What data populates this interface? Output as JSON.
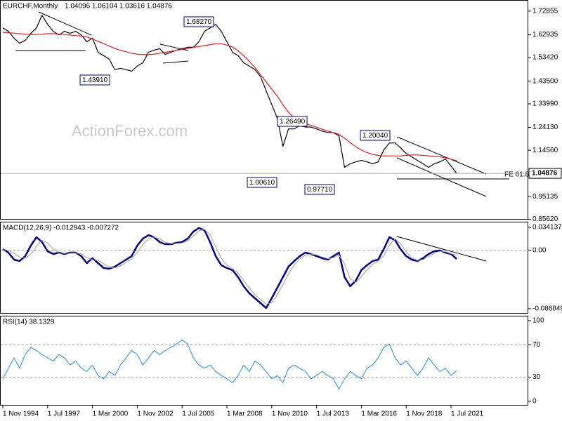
{
  "chart_data": [
    {
      "type": "line",
      "title": "EURCHF,Monthly",
      "subtitle": "1.04096 1.06104 1.03616 1.04876",
      "watermark": "ActionForex.com",
      "annotations": [
        "1.68270",
        "1.43910",
        "1.26490",
        "1.00610",
        "0.97710",
        "1.20040"
      ],
      "fe_label": "FE 61.8",
      "ylim": [
        0.855,
        1.775
      ],
      "yticks": [
        1.72855,
        1.62935,
        {
          "value": 1.5342,
          "label": "1.53420"
        },
        {
          "value": 1.435,
          "label": "1.43500"
        },
        {
          "value": 1.3399,
          "label": "1.33990"
        },
        {
          "value": 1.2413,
          "label": "1.24130"
        },
        {
          "value": 1.1456,
          "label": "1.14560"
        },
        0.95135,
        {
          "value": 0.8562,
          "label": "0.85620"
        }
      ],
      "series": [
        {
          "color": "#000000",
          "values": [
            1.658,
            1.644,
            1.615,
            1.594,
            1.606,
            1.635,
            1.658,
            1.711,
            1.673,
            1.644,
            1.629,
            1.644,
            1.635,
            1.644,
            1.629,
            1.6,
            1.615,
            1.556,
            1.542,
            1.527,
            1.483,
            1.489,
            1.483,
            1.477,
            1.498,
            1.512,
            1.556,
            1.565,
            1.571,
            1.547,
            1.556,
            1.565,
            1.571,
            1.577,
            1.577,
            1.6,
            1.644,
            1.658,
            1.673,
            1.644,
            1.6,
            1.556,
            1.542,
            1.512,
            1.498,
            1.483,
            1.454,
            1.395,
            1.337,
            1.279,
            1.162,
            1.235,
            1.235,
            1.249,
            1.243,
            1.243,
            1.235,
            1.226,
            1.22,
            1.22,
            1.206,
            1.074,
            1.089,
            1.097,
            1.103,
            1.097,
            1.089,
            1.097,
            1.147,
            1.176,
            1.176,
            1.156,
            1.132,
            1.118,
            1.103,
            1.089,
            1.074,
            1.089,
            1.097,
            1.109,
            1.08,
            1.04876
          ]
        },
        {
          "color": "#d42020",
          "values": [
            1.64,
            1.638,
            1.636,
            1.634,
            1.632,
            1.63,
            1.63,
            1.632,
            1.634,
            1.634,
            1.632,
            1.63,
            1.628,
            1.626,
            1.624,
            1.62,
            1.612,
            1.602,
            1.592,
            1.582,
            1.572,
            1.564,
            1.558,
            1.552,
            1.548,
            1.546,
            1.546,
            1.548,
            1.552,
            1.556,
            1.56,
            1.564,
            1.568,
            1.572,
            1.576,
            1.58,
            1.584,
            1.588,
            1.592,
            1.592,
            1.586,
            1.578,
            1.562,
            1.542,
            1.518,
            1.492,
            1.462,
            1.432,
            1.402,
            1.372,
            1.336,
            1.304,
            1.282,
            1.268,
            1.258,
            1.25,
            1.242,
            1.234,
            1.226,
            1.22,
            1.212,
            1.196,
            1.178,
            1.16,
            1.146,
            1.136,
            1.128,
            1.124,
            1.122,
            1.122,
            1.122,
            1.122,
            1.124,
            1.126,
            1.126,
            1.124,
            1.122,
            1.12,
            1.118,
            1.114,
            1.108,
            1.102
          ]
        }
      ]
    },
    {
      "type": "line",
      "title": "MACD(12,26,9) -0.012943 -0.007272",
      "ylim": [
        -0.0942,
        0.0425
      ],
      "yticks": [
        0.034137,
        {
          "value": 0,
          "label": "0.00"
        },
        -0.086849
      ],
      "levels": [
        0
      ],
      "series": [
        {
          "color": "#00007f",
          "width": 2.5,
          "values": [
            0.0018,
            -0.0034,
            -0.0139,
            -0.016,
            -0.0087,
            0.007,
            0.0195,
            0.0122,
            -0.0014,
            -0.0055,
            -0.0034,
            -0.0055,
            -0.0034,
            -0.0034,
            -0.0087,
            -0.0191,
            -0.0118,
            -0.0191,
            -0.0264,
            -0.0274,
            -0.0243,
            -0.0191,
            -0.0139,
            -0.0087,
            0.007,
            0.0174,
            0.0226,
            0.0195,
            0.0122,
            0.0091,
            0.0091,
            0.0112,
            0.0122,
            0.0174,
            0.0278,
            0.0331,
            0.0299,
            0.0122,
            -0.0087,
            -0.0222,
            -0.0264,
            -0.0295,
            -0.0399,
            -0.0535,
            -0.0639,
            -0.0712,
            -0.0785,
            -0.086,
            -0.0712,
            -0.0556,
            -0.0399,
            -0.0243,
            -0.016,
            -0.0087,
            -0.0034,
            -0.0055,
            -0.0087,
            -0.0118,
            -0.0139,
            -0.0087,
            -0.0034,
            -0.0399,
            -0.0535,
            -0.0452,
            -0.0295,
            -0.0222,
            -0.016,
            -0.0139,
            0.0018,
            0.0195,
            0.0153,
            0.0018,
            -0.0087,
            -0.0139,
            -0.016,
            -0.0118,
            -0.0055,
            -0.0014,
            -0.0003,
            -0.0034,
            -0.0055,
            -0.0129
          ]
        },
        {
          "color": "#a0a0a0",
          "width": 1,
          "values": [
            0.001,
            0.0,
            -0.004,
            -0.01,
            -0.012,
            -0.006,
            0.006,
            0.015,
            0.011,
            0.002,
            -0.004,
            -0.0045,
            -0.0045,
            -0.004,
            -0.005,
            -0.011,
            -0.014,
            -0.015,
            -0.02,
            -0.025,
            -0.026,
            -0.023,
            -0.018,
            -0.013,
            -0.003,
            0.009,
            0.017,
            0.02,
            0.017,
            0.012,
            0.01,
            0.01,
            0.011,
            0.014,
            0.021,
            0.029,
            0.031,
            0.023,
            0.005,
            -0.012,
            -0.022,
            -0.027,
            -0.034,
            -0.045,
            -0.056,
            -0.066,
            -0.073,
            -0.08,
            -0.078,
            -0.066,
            -0.051,
            -0.035,
            -0.022,
            -0.013,
            -0.007,
            -0.0055,
            -0.007,
            -0.01,
            -0.0125,
            -0.011,
            -0.007,
            -0.02,
            -0.042,
            -0.048,
            -0.039,
            -0.029,
            -0.021,
            -0.016,
            -0.008,
            0.008,
            0.017,
            0.01,
            -0.002,
            -0.011,
            -0.015,
            -0.014,
            -0.009,
            -0.004,
            -0.0015,
            -0.002,
            -0.005,
            -0.0073
          ]
        }
      ]
    },
    {
      "type": "line",
      "title": "RSI(14) 38.1329",
      "ylim": [
        -5.2,
        106
      ],
      "yticks": [
        100,
        70,
        30,
        0
      ],
      "levels": [
        70,
        30
      ],
      "categories": [
        "1 Nov 1994",
        null,
        null,
        null,
        null,
        null,
        null,
        null,
        "1 Jul 1997",
        null,
        null,
        null,
        null,
        null,
        null,
        null,
        "1 Mar 2000",
        null,
        null,
        null,
        null,
        null,
        null,
        null,
        "1 Nov 2002",
        null,
        null,
        null,
        null,
        null,
        null,
        null,
        "1 Jul 2005",
        null,
        null,
        null,
        null,
        null,
        null,
        null,
        "1 Mar 2008",
        null,
        null,
        null,
        null,
        null,
        null,
        null,
        "1 Nov 2010",
        null,
        null,
        null,
        null,
        null,
        null,
        null,
        "1 Jul 2013",
        null,
        null,
        null,
        null,
        null,
        null,
        null,
        "1 Mar 2016",
        null,
        null,
        null,
        null,
        null,
        null,
        null,
        "1 Nov 2018",
        null,
        null,
        null,
        null,
        null,
        null,
        null,
        "1 Jul 2021",
        null
      ],
      "series": [
        {
          "color": "#2a8ad8",
          "width": 1,
          "values": [
            28,
            41,
            54,
            41,
            58,
            67,
            63,
            58,
            54,
            50,
            58,
            54,
            45,
            50,
            41,
            37,
            45,
            32,
            28,
            37,
            32,
            45,
            54,
            63,
            58,
            45,
            54,
            63,
            58,
            63,
            67,
            71,
            76,
            71,
            54,
            45,
            41,
            45,
            37,
            32,
            28,
            23,
            32,
            45,
            37,
            50,
            45,
            37,
            28,
            32,
            23,
            41,
            45,
            41,
            37,
            28,
            32,
            37,
            32,
            28,
            15,
            28,
            37,
            32,
            28,
            41,
            45,
            54,
            67,
            71,
            54,
            45,
            50,
            41,
            32,
            41,
            54,
            45,
            37,
            41,
            32,
            38.1329
          ]
        }
      ]
    }
  ]
}
